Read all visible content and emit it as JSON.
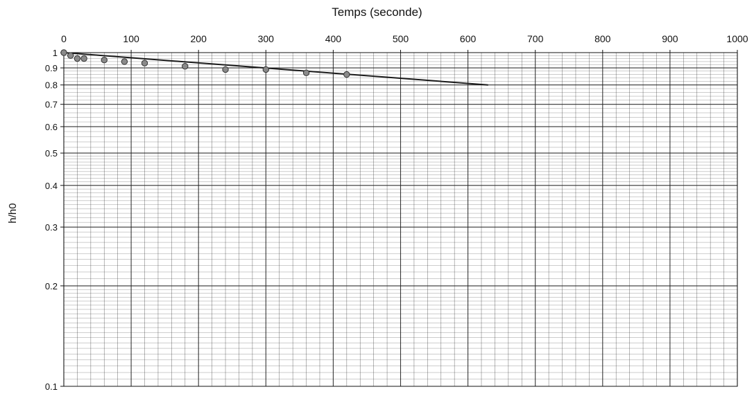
{
  "chart_data": {
    "type": "scatter",
    "xlabel": "Temps (seconde)",
    "ylabel": "h/h0",
    "x_axis_position": "top",
    "xlim": [
      0,
      1000
    ],
    "ylim": [
      0.1,
      1
    ],
    "y_scale": "log",
    "grid": true,
    "x_ticks": [
      0,
      100,
      200,
      300,
      400,
      500,
      600,
      700,
      800,
      900,
      1000
    ],
    "x_tick_labels": [
      "0",
      "100",
      "200",
      "300",
      "400",
      "500",
      "600",
      "700",
      "800",
      "900",
      "1000"
    ],
    "y_ticks": [
      0.1,
      0.2,
      0.3,
      0.4,
      0.5,
      0.6,
      0.7,
      0.8,
      0.9,
      1
    ],
    "y_tick_labels": [
      "0.1",
      "0.2",
      "0.3",
      "0.4",
      "0.5",
      "0.6",
      "0.7",
      "0.8",
      "0.9",
      "1"
    ],
    "series": [
      {
        "kind": "points",
        "x": [
          0,
          10,
          20,
          30,
          60,
          90,
          120,
          180,
          240,
          300,
          360,
          420
        ],
        "y": [
          1.0,
          0.98,
          0.96,
          0.96,
          0.95,
          0.94,
          0.93,
          0.91,
          0.89,
          0.89,
          0.87,
          0.86
        ]
      },
      {
        "kind": "line",
        "x": [
          0,
          630
        ],
        "y": [
          1.0,
          0.8
        ]
      }
    ],
    "colors": {
      "points": "#8a8a8a",
      "line": "#1a1a1a",
      "grid": "#222222"
    }
  }
}
